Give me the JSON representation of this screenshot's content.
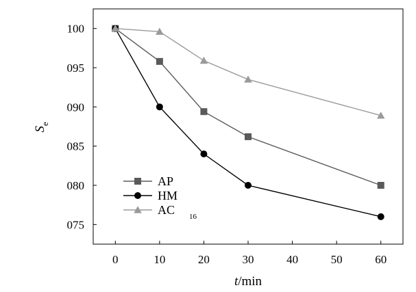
{
  "chart_data": {
    "type": "line",
    "xlabel_italic": "t",
    "xlabel_unit": "/min",
    "ylabel_main": "S",
    "ylabel_sub": "e",
    "xlim": [
      -5,
      65
    ],
    "ylim": [
      72.5,
      102.5
    ],
    "x_ticks": [
      0,
      10,
      20,
      30,
      40,
      50,
      60
    ],
    "x_tick_labels": [
      "0",
      "10",
      "20",
      "30",
      "40",
      "50",
      "60"
    ],
    "y_ticks": [
      75,
      80,
      85,
      90,
      95,
      100
    ],
    "y_tick_labels": [
      "075",
      "080",
      "085",
      "090",
      "095",
      "100"
    ],
    "grid": false,
    "legend_position": "lower-left",
    "series": [
      {
        "name": "AP",
        "legend_suffix": "",
        "marker": "square",
        "color": "#5a5a5a",
        "x": [
          0,
          10,
          20,
          30,
          60
        ],
        "values": [
          100,
          95.8,
          89.4,
          86.2,
          80.0
        ]
      },
      {
        "name": "HM",
        "legend_suffix": "",
        "marker": "circle",
        "color": "#000000",
        "x": [
          0,
          10,
          20,
          30,
          60
        ],
        "values": [
          100,
          90.0,
          84.0,
          80.0,
          76.0
        ]
      },
      {
        "name": "AC",
        "legend_suffix": "16",
        "marker": "triangle",
        "color": "#9a9a9a",
        "x": [
          0,
          10,
          20,
          30,
          60
        ],
        "values": [
          100,
          99.6,
          95.9,
          93.5,
          88.9
        ]
      }
    ]
  }
}
